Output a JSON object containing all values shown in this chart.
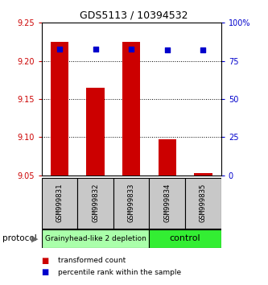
{
  "title": "GDS5113 / 10394532",
  "samples": [
    "GSM999831",
    "GSM999832",
    "GSM999833",
    "GSM999834",
    "GSM999835"
  ],
  "bar_values": [
    9.225,
    9.165,
    9.225,
    9.097,
    9.053
  ],
  "percentile_values": [
    83,
    83,
    83,
    82,
    82
  ],
  "ylim_left": [
    9.05,
    9.25
  ],
  "ylim_right": [
    0,
    100
  ],
  "yticks_left": [
    9.05,
    9.1,
    9.15,
    9.2,
    9.25
  ],
  "yticks_right": [
    0,
    25,
    50,
    75,
    100
  ],
  "ytick_labels_right": [
    "0",
    "25",
    "50",
    "75",
    "100%"
  ],
  "bar_color": "#cc0000",
  "dot_color": "#0000cc",
  "bar_bottom": 9.05,
  "group_labels": [
    "Grainyhead-like 2 depletion",
    "control"
  ],
  "group_colors": [
    "#aaffaa",
    "#33ee33"
  ],
  "protocol_label": "protocol",
  "legend_items": [
    {
      "label": "transformed count",
      "color": "#cc0000"
    },
    {
      "label": "percentile rank within the sample",
      "color": "#0000cc"
    }
  ],
  "grid_color": "#000000",
  "tick_color_left": "#cc0000",
  "tick_color_right": "#0000cc",
  "bar_width": 0.5,
  "xlim": [
    -0.5,
    4.5
  ]
}
